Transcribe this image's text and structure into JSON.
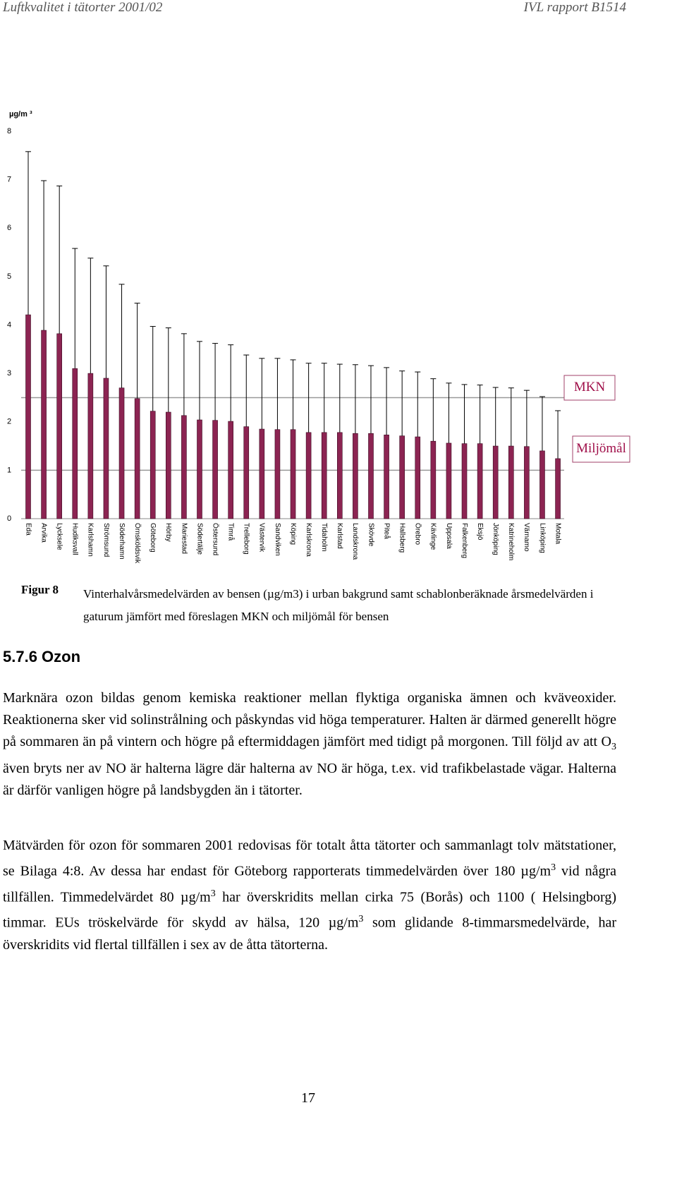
{
  "header": {
    "left": "Luftkvalitet i tätorter 2001/02",
    "right": "IVL rapport B1514"
  },
  "chart_data": {
    "type": "bar",
    "y_label": "µg/m ³",
    "categories": [
      "Eda",
      "Arvika",
      "Lycksele",
      "Hudiksvall",
      "Karlshamn",
      "Strömsund",
      "Söderhamn",
      "Örnsköldsvik",
      "Göteborg",
      "Hörby",
      "Mariestad",
      "Södertälje",
      "Östersund",
      "Timrå",
      "Trelleborg",
      "Västervik",
      "Sandviken",
      "Köping",
      "Karlskrona",
      "Tidaholm",
      "Karlstad",
      "Landskrona",
      "Skövde",
      "Piteå",
      "Hallsberg",
      "Örebro",
      "Kävlinge",
      "Uppsala",
      "Falkenberg",
      "Eksjö",
      "Jönköping",
      "Katrineholm",
      "Värnamo",
      "Linköping",
      "Motala"
    ],
    "series": [
      {
        "color": "#8c2452",
        "values": [
          4.21,
          3.89,
          3.82,
          3.1,
          3.0,
          2.9,
          2.7,
          2.48,
          2.22,
          2.2,
          2.13,
          2.04,
          2.03,
          2.01,
          1.9,
          1.85,
          1.84,
          1.84,
          1.78,
          1.78,
          1.78,
          1.76,
          1.76,
          1.73,
          1.71,
          1.69,
          1.6,
          1.56,
          1.55,
          1.55,
          1.5,
          1.5,
          1.49,
          1.4,
          1.24
        ]
      },
      {
        "color": "#000000",
        "values": [
          7.58,
          6.98,
          6.87,
          5.58,
          5.38,
          5.22,
          4.84,
          4.45,
          3.97,
          3.94,
          3.82,
          3.66,
          3.62,
          3.59,
          3.38,
          3.31,
          3.31,
          3.28,
          3.21,
          3.21,
          3.19,
          3.18,
          3.16,
          3.12,
          3.05,
          3.03,
          2.89,
          2.8,
          2.77,
          2.76,
          2.71,
          2.7,
          2.65,
          2.52,
          2.23
        ]
      }
    ],
    "reference_lines": [
      {
        "label": "MKN",
        "value": 2.5
      },
      {
        "label": "Miljömål",
        "value": 1
      }
    ],
    "ylim": [
      0,
      8
    ],
    "yticks": [
      0,
      1,
      2,
      3,
      4,
      5,
      6,
      7,
      8
    ],
    "grid": false
  },
  "caption": {
    "label": "Figur 8",
    "text": "Vinterhalvårsmedelvärden av bensen (µg/m3) i urban bakgrund samt schablonberäknade årsmedelvärden i gaturum jämfört med föreslagen MKN och miljömål för bensen"
  },
  "section": {
    "heading": "5.7.6 Ozon"
  },
  "paragraphs": [
    [
      {
        "t": "Marknära ozon bildas genom kemiska reaktioner mellan flyktiga organiska ämnen och kväveoxider. Reaktionerna sker vid solinstrålning och påskyndas vid höga temperaturer. Halten är därmed generellt högre på sommaren än på vintern och högre på efter­middagen jämfört med tidigt på morgonen. Till följd av att O"
      },
      {
        "sub": "3"
      },
      {
        "t": " även bryts ner av NO är hal­terna lägre där halterna av NO är höga, t.ex. vid trafikbelastade vägar. Halterna är därför vanligen högre på landsbygden än i tätorter."
      }
    ],
    [
      {
        "t": "Mätvärden för ozon för sommaren 2001 redovisas för totalt åtta tätorter och sammanlagt tolv mätstationer, se Bilaga 4:8. Av dessa har endast för Göteborg rapporterats tim­medelvärden över 180 µg/m"
      },
      {
        "sup": "3"
      },
      {
        "t": " vid några tillfällen. Timmedelvärdet 80 µg/m"
      },
      {
        "sup": "3"
      },
      {
        "t": " har över­skridits mellan cirka 75 (Borås) och 1100 ( Helsingborg) timmar. EUs tröskelvärde för skydd av hälsa, 120 µg/m"
      },
      {
        "sup": "3"
      },
      {
        "t": " som glidande 8-timmarsmedelvärde, har överskridits vid flertal tillfällen i sex av de åtta tätorterna."
      }
    ]
  ],
  "page_number": "17"
}
